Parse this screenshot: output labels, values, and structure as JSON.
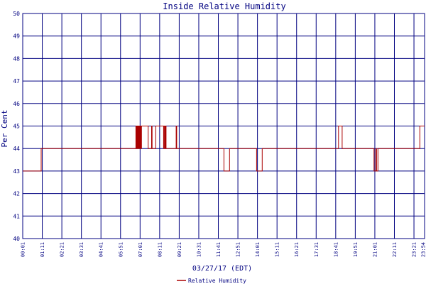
{
  "chart_data": {
    "type": "line",
    "title": "Inside Relative Humidity",
    "ylabel": "Per Cent",
    "xlabel": "03/27/17 (EDT)",
    "ylim": [
      40,
      50
    ],
    "yticks": [
      "40",
      "41",
      "42",
      "43",
      "44",
      "45",
      "46",
      "47",
      "48",
      "49",
      "50"
    ],
    "xticks": [
      "00:01",
      "01:11",
      "02:21",
      "03:31",
      "04:41",
      "05:51",
      "07:01",
      "08:11",
      "09:21",
      "10:31",
      "11:41",
      "12:51",
      "14:01",
      "15:11",
      "16:21",
      "17:31",
      "18:41",
      "19:51",
      "21:01",
      "22:11",
      "23:21",
      "23:54"
    ],
    "grid": true,
    "legend_position": "bottom",
    "colors": {
      "series": "#aa0000",
      "frame": "#000080",
      "text": "#000080"
    },
    "series": [
      {
        "name": "Relative Humidity",
        "step_points": [
          [
            "00:01",
            43
          ],
          [
            "01:07",
            44
          ],
          [
            "06:46",
            45
          ],
          [
            "06:48",
            44
          ],
          [
            "06:50",
            45
          ],
          [
            "06:52",
            44
          ],
          [
            "06:54",
            45
          ],
          [
            "06:56",
            44
          ],
          [
            "06:58",
            45
          ],
          [
            "07:00",
            44
          ],
          [
            "07:02",
            45
          ],
          [
            "07:04",
            44
          ],
          [
            "07:06",
            45
          ],
          [
            "07:30",
            44
          ],
          [
            "07:42",
            45
          ],
          [
            "07:44",
            44
          ],
          [
            "07:57",
            45
          ],
          [
            "08:25",
            44
          ],
          [
            "08:27",
            45
          ],
          [
            "08:30",
            44
          ],
          [
            "08:32",
            45
          ],
          [
            "08:34",
            44
          ],
          [
            "09:10",
            45
          ],
          [
            "09:12",
            44
          ],
          [
            "12:01",
            43
          ],
          [
            "12:21",
            44
          ],
          [
            "13:58",
            43
          ],
          [
            "14:18",
            44
          ],
          [
            "18:51",
            45
          ],
          [
            "19:04",
            44
          ],
          [
            "20:58",
            43
          ],
          [
            "21:05",
            44
          ],
          [
            "21:07",
            43
          ],
          [
            "21:12",
            44
          ],
          [
            "23:42",
            45
          ],
          [
            "23:59",
            45
          ]
        ]
      }
    ]
  }
}
